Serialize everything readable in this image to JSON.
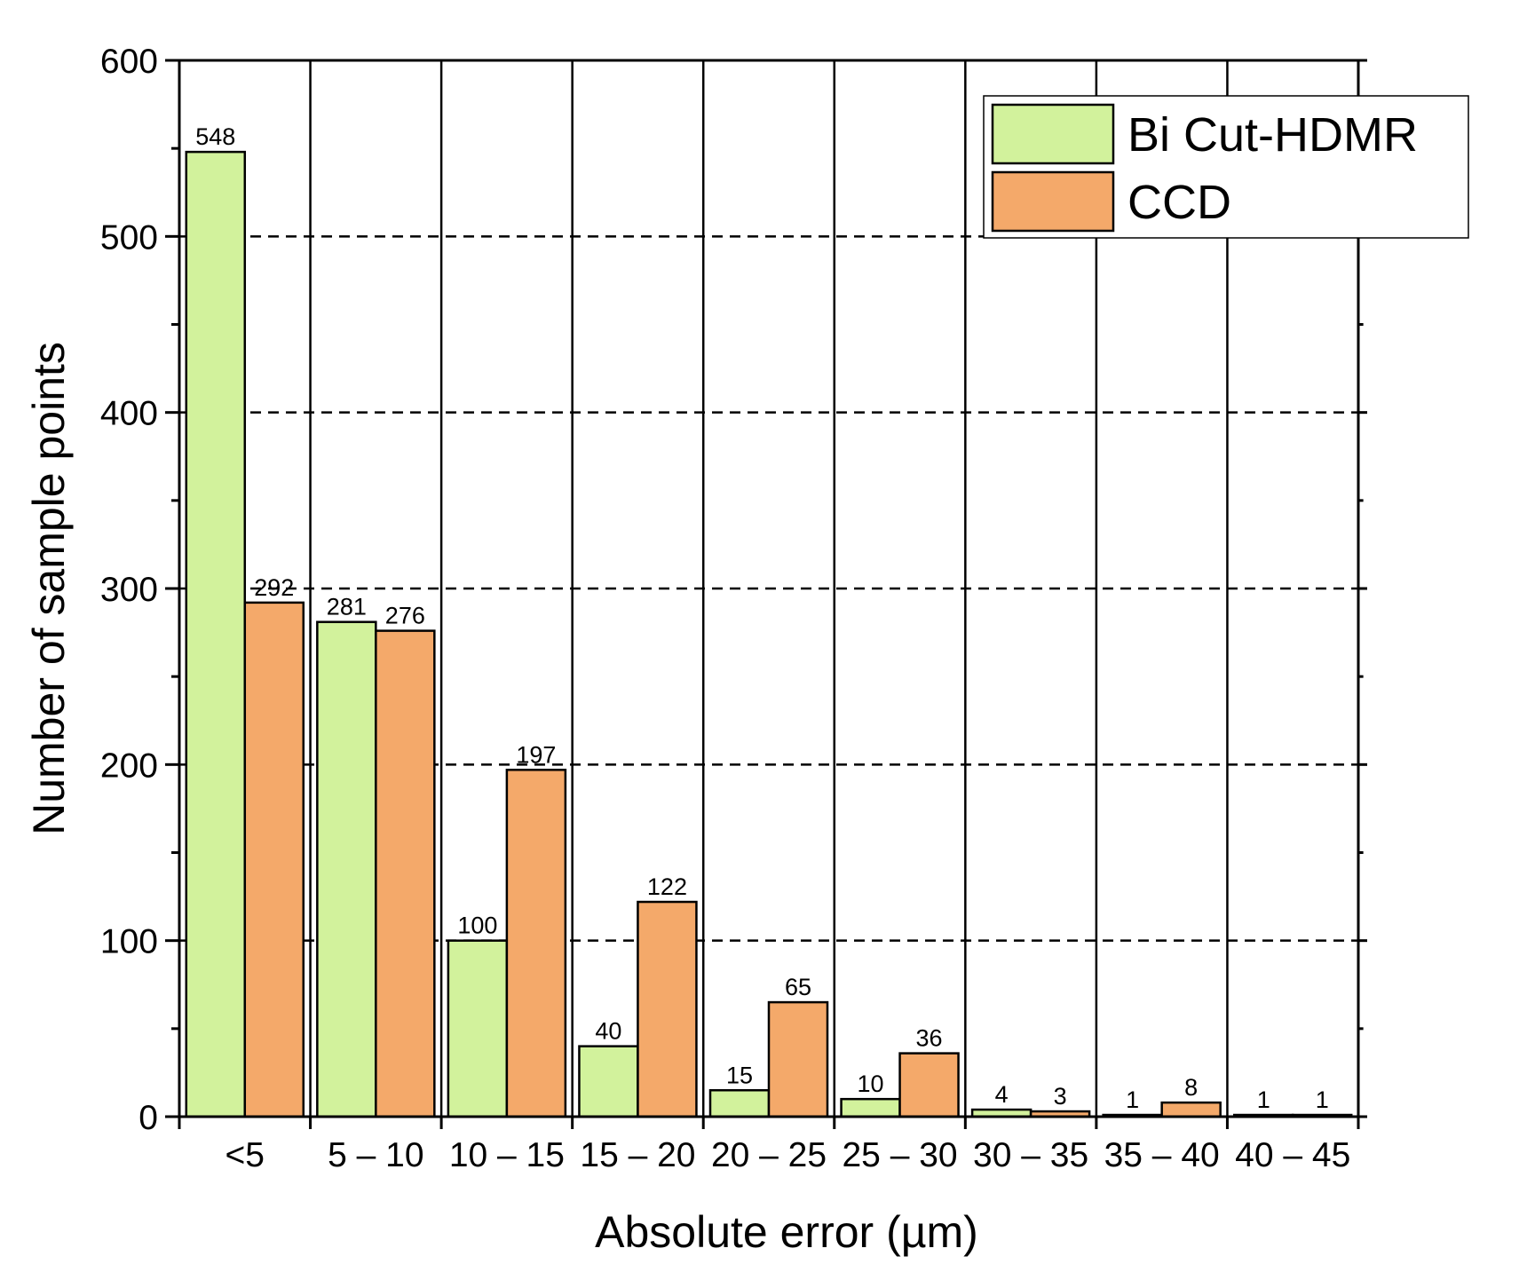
{
  "chart_data": {
    "type": "bar",
    "xlabel": "Absolute error (µm)",
    "ylabel": "Number of sample points",
    "categories": [
      "<5",
      "5 – 10",
      "10 – 15",
      "15 – 20",
      "20 – 25",
      "25 – 30",
      "30 – 35",
      "35 – 40",
      "40 – 45"
    ],
    "series": [
      {
        "name": "Bi Cut-HDMR",
        "color": "#d2f29c",
        "values": [
          548,
          281,
          100,
          40,
          15,
          10,
          4,
          1,
          1
        ]
      },
      {
        "name": "CCD",
        "color": "#f4a96a",
        "values": [
          292,
          276,
          197,
          122,
          65,
          36,
          3,
          8,
          1
        ]
      }
    ],
    "ylim": [
      0,
      600
    ],
    "yticks": [
      0,
      100,
      200,
      300,
      400,
      500,
      600
    ],
    "grid": "horizontal dashed at major ticks; vertical solid between categories",
    "legend_position": "top-right",
    "data_labels": true
  }
}
